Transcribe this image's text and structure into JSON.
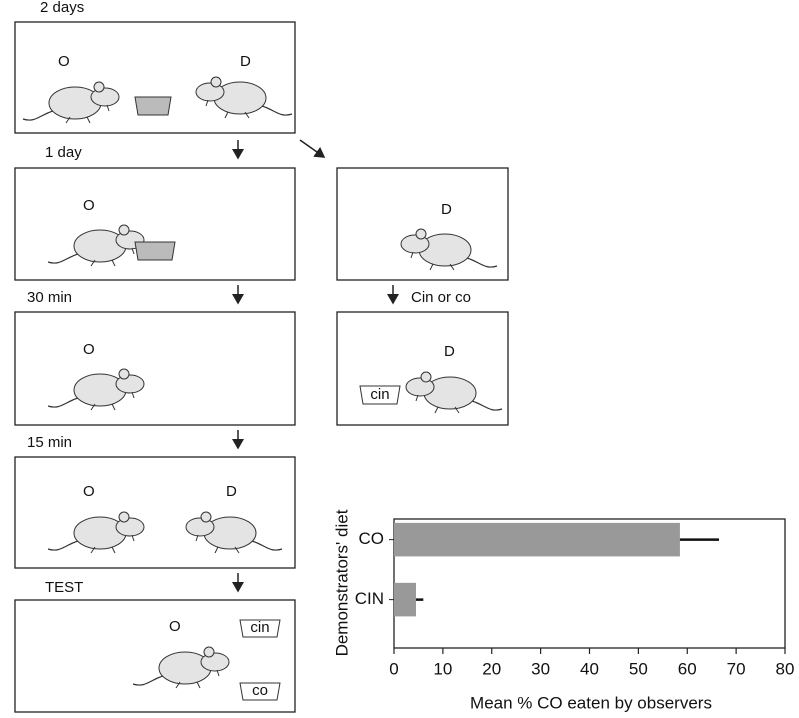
{
  "diagram": {
    "phases": [
      "2 days",
      "1 day",
      "30 min",
      "15 min",
      "TEST"
    ],
    "observer_label": "O",
    "demonstrator_label": "D",
    "diet_note": "Cin or co",
    "cups": [
      "cin",
      "co"
    ]
  },
  "chart_data": {
    "type": "bar",
    "orientation": "horizontal",
    "categories": [
      "CO",
      "CIN"
    ],
    "values": [
      58.5,
      4.5
    ],
    "errors": [
      8,
      1.5
    ],
    "color": "#999999",
    "xlabel": "Mean % CO eaten by observers",
    "ylabel": "Demonstrators' diet",
    "xlim": [
      0,
      80
    ],
    "xticks": [
      0,
      10,
      20,
      30,
      40,
      50,
      60,
      70,
      80
    ],
    "grid": false
  }
}
